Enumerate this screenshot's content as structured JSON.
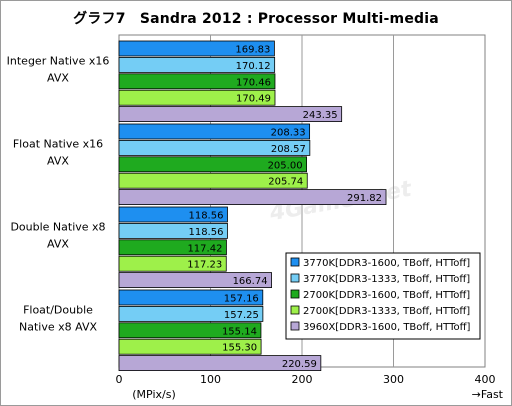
{
  "chart_data": {
    "type": "bar",
    "orientation": "horizontal",
    "title": "グラフ7　Sandra 2012 : Processor  Multi-media",
    "categories": [
      "Integer Native x16 AVX",
      "Float Native x16 AVX",
      "Double Native x8 AVX",
      "Float/Double Native x8 AVX"
    ],
    "category_lines": [
      [
        "Integer Native x16",
        "AVX"
      ],
      [
        "Float Native x16",
        "AVX"
      ],
      [
        "Double Native x8",
        "AVX"
      ],
      [
        "Float/Double",
        "Native x8 AVX"
      ]
    ],
    "series": [
      {
        "name": "3770K[DDR3-1600, TBoff, HTToff]",
        "color": "#1e8ff0",
        "values": [
          169.83,
          208.33,
          118.56,
          157.16
        ]
      },
      {
        "name": "3770K[DDR3-1333, TBoff, HTToff]",
        "color": "#74cdf5",
        "values": [
          170.12,
          208.57,
          118.56,
          157.25
        ]
      },
      {
        "name": "2700K[DDR3-1600, TBoff, HTToff]",
        "color": "#1faa1f",
        "values": [
          170.46,
          205.0,
          117.42,
          155.14
        ]
      },
      {
        "name": "2700K[DDR3-1333, TBoff, HTToff]",
        "color": "#9ef04a",
        "values": [
          170.49,
          205.74,
          117.23,
          155.3
        ]
      },
      {
        "name": "3960X[DDR3-1600, TBoff, HTToff]",
        "color": "#b7a7d6",
        "values": [
          243.35,
          291.82,
          166.74,
          220.59
        ]
      }
    ],
    "xlim": [
      0,
      400
    ],
    "xticks": [
      0,
      100,
      200,
      300,
      400
    ],
    "xlabel": "(MPix/s)",
    "direction_note": "→Fast",
    "grid": true,
    "legend_position": "bottom-right",
    "watermark": "4Gamer.net"
  }
}
